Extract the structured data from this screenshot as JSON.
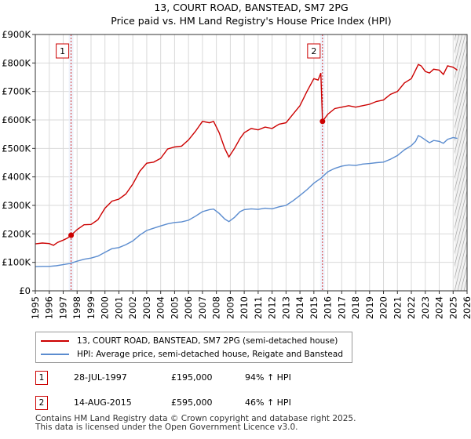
{
  "chart_data": {
    "type": "line",
    "title": "13, COURT ROAD, BANSTEAD, SM7 2PG",
    "subtitle": "Price paid vs. HM Land Registry's House Price Index (HPI)",
    "xlim": [
      1995,
      2026
    ],
    "ylim": [
      0,
      900000
    ],
    "x_ticks": [
      1995,
      1996,
      1997,
      1998,
      1999,
      2000,
      2001,
      2002,
      2003,
      2004,
      2005,
      2006,
      2007,
      2008,
      2009,
      2010,
      2011,
      2012,
      2013,
      2014,
      2015,
      2016,
      2017,
      2018,
      2019,
      2020,
      2021,
      2022,
      2023,
      2024,
      2025,
      2026
    ],
    "y_ticks": [
      0,
      100000,
      200000,
      300000,
      400000,
      500000,
      600000,
      700000,
      800000,
      900000
    ],
    "y_tick_labels": [
      "£0",
      "£100K",
      "£200K",
      "£300K",
      "£400K",
      "£500K",
      "£600K",
      "£700K",
      "£800K",
      "£900K"
    ],
    "hatch_from": 2025.1,
    "series": [
      {
        "name": "13, COURT ROAD, BANSTEAD, SM7 2PG (semi-detached house)",
        "color": "#cc0000",
        "points": [
          [
            1995.0,
            165000
          ],
          [
            1995.5,
            168000
          ],
          [
            1996.0,
            166000
          ],
          [
            1996.3,
            160000
          ],
          [
            1996.6,
            170000
          ],
          [
            1997.0,
            178000
          ],
          [
            1997.3,
            185000
          ],
          [
            1997.57,
            195000
          ],
          [
            1998.0,
            215000
          ],
          [
            1998.5,
            232000
          ],
          [
            1999.0,
            233000
          ],
          [
            1999.5,
            250000
          ],
          [
            2000.0,
            290000
          ],
          [
            2000.5,
            315000
          ],
          [
            2001.0,
            322000
          ],
          [
            2001.5,
            340000
          ],
          [
            2002.0,
            375000
          ],
          [
            2002.5,
            420000
          ],
          [
            2003.0,
            448000
          ],
          [
            2003.5,
            452000
          ],
          [
            2004.0,
            465000
          ],
          [
            2004.5,
            498000
          ],
          [
            2005.0,
            505000
          ],
          [
            2005.5,
            508000
          ],
          [
            2006.0,
            530000
          ],
          [
            2006.5,
            560000
          ],
          [
            2007.0,
            595000
          ],
          [
            2007.5,
            590000
          ],
          [
            2007.8,
            595000
          ],
          [
            2008.2,
            555000
          ],
          [
            2008.6,
            500000
          ],
          [
            2008.9,
            470000
          ],
          [
            2009.3,
            500000
          ],
          [
            2009.7,
            535000
          ],
          [
            2010.0,
            555000
          ],
          [
            2010.5,
            570000
          ],
          [
            2011.0,
            565000
          ],
          [
            2011.5,
            575000
          ],
          [
            2012.0,
            570000
          ],
          [
            2012.5,
            585000
          ],
          [
            2013.0,
            590000
          ],
          [
            2013.5,
            620000
          ],
          [
            2014.0,
            650000
          ],
          [
            2014.5,
            700000
          ],
          [
            2015.0,
            745000
          ],
          [
            2015.3,
            740000
          ],
          [
            2015.5,
            765000
          ],
          [
            2015.6,
            625000
          ],
          [
            2015.62,
            595000
          ],
          [
            2016.0,
            620000
          ],
          [
            2016.5,
            640000
          ],
          [
            2017.0,
            645000
          ],
          [
            2017.5,
            650000
          ],
          [
            2018.0,
            645000
          ],
          [
            2018.5,
            650000
          ],
          [
            2019.0,
            655000
          ],
          [
            2019.5,
            665000
          ],
          [
            2020.0,
            670000
          ],
          [
            2020.5,
            690000
          ],
          [
            2021.0,
            700000
          ],
          [
            2021.5,
            730000
          ],
          [
            2022.0,
            745000
          ],
          [
            2022.3,
            775000
          ],
          [
            2022.5,
            795000
          ],
          [
            2022.7,
            790000
          ],
          [
            2023.0,
            770000
          ],
          [
            2023.3,
            765000
          ],
          [
            2023.6,
            778000
          ],
          [
            2024.0,
            775000
          ],
          [
            2024.3,
            760000
          ],
          [
            2024.6,
            790000
          ],
          [
            2025.0,
            785000
          ],
          [
            2025.3,
            775000
          ]
        ]
      },
      {
        "name": "HPI: Average price, semi-detached house, Reigate and Banstead",
        "color": "#5b8ccf",
        "points": [
          [
            1995.0,
            85000
          ],
          [
            1995.5,
            86000
          ],
          [
            1996.0,
            86000
          ],
          [
            1996.5,
            88000
          ],
          [
            1997.0,
            92000
          ],
          [
            1997.5,
            96000
          ],
          [
            1998.0,
            104000
          ],
          [
            1998.5,
            111000
          ],
          [
            1999.0,
            115000
          ],
          [
            1999.5,
            122000
          ],
          [
            2000.0,
            135000
          ],
          [
            2000.5,
            148000
          ],
          [
            2001.0,
            152000
          ],
          [
            2001.5,
            162000
          ],
          [
            2002.0,
            175000
          ],
          [
            2002.5,
            196000
          ],
          [
            2003.0,
            212000
          ],
          [
            2003.5,
            220000
          ],
          [
            2004.0,
            228000
          ],
          [
            2004.5,
            235000
          ],
          [
            2005.0,
            240000
          ],
          [
            2005.5,
            242000
          ],
          [
            2006.0,
            248000
          ],
          [
            2006.5,
            262000
          ],
          [
            2007.0,
            278000
          ],
          [
            2007.5,
            285000
          ],
          [
            2007.8,
            287000
          ],
          [
            2008.2,
            272000
          ],
          [
            2008.6,
            252000
          ],
          [
            2008.9,
            243000
          ],
          [
            2009.3,
            258000
          ],
          [
            2009.7,
            278000
          ],
          [
            2010.0,
            285000
          ],
          [
            2010.5,
            288000
          ],
          [
            2011.0,
            286000
          ],
          [
            2011.5,
            290000
          ],
          [
            2012.0,
            288000
          ],
          [
            2012.5,
            295000
          ],
          [
            2013.0,
            300000
          ],
          [
            2013.5,
            316000
          ],
          [
            2014.0,
            335000
          ],
          [
            2014.5,
            355000
          ],
          [
            2015.0,
            378000
          ],
          [
            2015.5,
            395000
          ],
          [
            2016.0,
            418000
          ],
          [
            2016.5,
            430000
          ],
          [
            2017.0,
            438000
          ],
          [
            2017.5,
            442000
          ],
          [
            2018.0,
            440000
          ],
          [
            2018.5,
            445000
          ],
          [
            2019.0,
            447000
          ],
          [
            2019.5,
            450000
          ],
          [
            2020.0,
            452000
          ],
          [
            2020.5,
            462000
          ],
          [
            2021.0,
            475000
          ],
          [
            2021.5,
            495000
          ],
          [
            2022.0,
            510000
          ],
          [
            2022.3,
            525000
          ],
          [
            2022.5,
            545000
          ],
          [
            2022.7,
            540000
          ],
          [
            2023.0,
            530000
          ],
          [
            2023.3,
            520000
          ],
          [
            2023.6,
            528000
          ],
          [
            2024.0,
            525000
          ],
          [
            2024.3,
            518000
          ],
          [
            2024.6,
            532000
          ],
          [
            2025.0,
            538000
          ],
          [
            2025.3,
            535000
          ]
        ]
      }
    ],
    "markers": [
      {
        "label": "1",
        "x": 1997.57,
        "y": 195000
      },
      {
        "label": "2",
        "x": 2015.62,
        "y": 595000
      }
    ]
  },
  "transactions": [
    {
      "num": "1",
      "date": "28-JUL-1997",
      "price": "£195,000",
      "hpi": "94% ↑ HPI"
    },
    {
      "num": "2",
      "date": "14-AUG-2015",
      "price": "£595,000",
      "hpi": "46% ↑ HPI"
    }
  ],
  "footer": {
    "line1": "Contains HM Land Registry data © Crown copyright and database right 2025.",
    "line2": "This data is licensed under the Open Government Licence v3.0."
  },
  "colors": {
    "property": "#cc0000",
    "hpi": "#5b8ccf",
    "grid": "#d9d9d9",
    "plot_bg": "#ffffff"
  }
}
